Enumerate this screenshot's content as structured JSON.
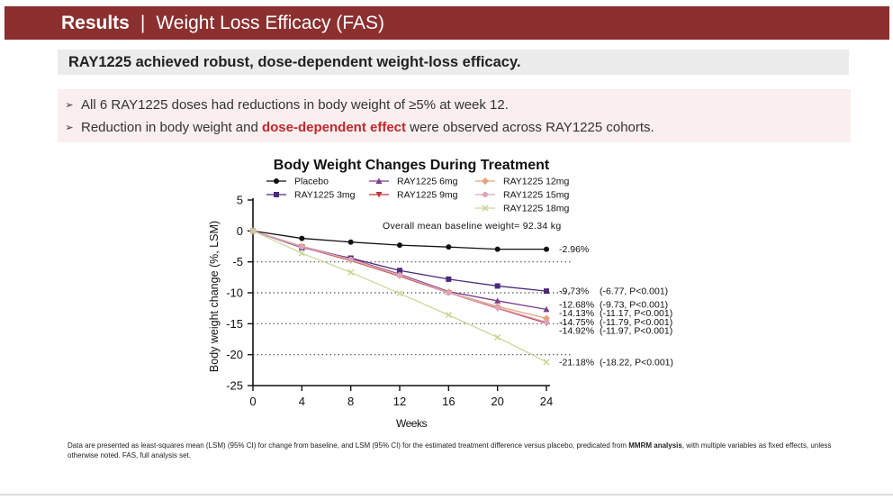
{
  "header": {
    "section": "Results",
    "separator": "|",
    "title": "Weight Loss Efficacy (FAS)"
  },
  "subtitle": "RAY1225 achieved robust, dose-dependent weight-loss efficacy.",
  "bullets": [
    {
      "text_before": "All 6 RAY1225 doses had reductions in body weight of ≥5% at week 12.",
      "highlight": "",
      "text_after": ""
    },
    {
      "text_before": "Reduction in body weight and ",
      "highlight": "dose-dependent effect",
      "text_after": " were observed across RAY1225 cohorts."
    }
  ],
  "chart_data": {
    "type": "line",
    "title": "Body Weight Changes During Treatment",
    "xlabel": "Weeks",
    "ylabel": "Body weight change (%, LSM)",
    "x": [
      0,
      4,
      8,
      12,
      16,
      20,
      24
    ],
    "xlim": [
      0,
      24
    ],
    "ylim": [
      -25,
      5
    ],
    "xticks": [
      "0",
      "4",
      "8",
      "12",
      "16",
      "20",
      "24"
    ],
    "yticks": [
      "5",
      "0",
      "-5",
      "-10",
      "-15",
      "-20",
      "-25"
    ],
    "ytick_values": [
      5,
      0,
      -5,
      -10,
      -15,
      -20,
      -25
    ],
    "reference_lines": [
      -5,
      -10,
      -15,
      -20
    ],
    "annotation": "Overall mean baseline weight= 92.34 kg",
    "legend_placement": "top",
    "series": [
      {
        "name": "Placebo",
        "color": "#111111",
        "marker": "circle",
        "values": [
          0,
          -1.2,
          -1.8,
          -2.3,
          -2.6,
          -2.95,
          -2.96
        ]
      },
      {
        "name": "RAY1225 3mg",
        "color": "#4a2a7a",
        "marker": "square",
        "values": [
          0,
          -2.7,
          -4.4,
          -6.4,
          -7.8,
          -8.9,
          -9.73
        ]
      },
      {
        "name": "RAY1225 6mg",
        "color": "#7b3f8c",
        "marker": "triangle-up",
        "values": [
          0,
          -2.5,
          -4.5,
          -7.0,
          -9.8,
          -11.3,
          -12.68
        ]
      },
      {
        "name": "RAY1225 9mg",
        "color": "#c0363f",
        "marker": "triangle-down",
        "values": [
          0,
          -2.6,
          -4.8,
          -7.3,
          -10.0,
          -12.5,
          -14.92
        ]
      },
      {
        "name": "RAY1225 12mg",
        "color": "#e8a17a",
        "marker": "diamond",
        "values": [
          0,
          -2.5,
          -4.7,
          -7.2,
          -9.9,
          -12.2,
          -14.13
        ]
      },
      {
        "name": "RAY1225 15mg",
        "color": "#d9a5b8",
        "marker": "circle",
        "values": [
          0,
          -2.6,
          -4.6,
          -7.1,
          -10.0,
          -12.4,
          -14.75
        ]
      },
      {
        "name": "RAY1225 18mg",
        "color": "#c8d89a",
        "marker": "x",
        "values": [
          0,
          -3.6,
          -6.7,
          -10.1,
          -13.6,
          -17.2,
          -21.18
        ]
      }
    ],
    "end_labels": [
      {
        "pct": "-2.96%",
        "detail": "",
        "y": -2.96
      },
      {
        "pct": "-9,73%",
        "detail": "(-6.77, P<0.001)",
        "y": -9.73
      },
      {
        "pct": "-12.68%",
        "detail": "(-9.73, P<0.001)",
        "y": -11.9
      },
      {
        "pct": "-14.13%",
        "detail": "(-11.17, P<0.001)",
        "y": -13.3
      },
      {
        "pct": "-14.75%",
        "detail": "(-11.79, P<0.001)",
        "y": -14.7
      },
      {
        "pct": "-14.92%",
        "detail": "(-11.97, P<0.001)",
        "y": -16.1
      },
      {
        "pct": "-21.18%",
        "detail": "(-18.22, P<0.001)",
        "y": -21.18
      }
    ]
  },
  "footnote": {
    "part1": "Data are presented as least-squares mean (LSM) (95% CI) for change from baseline, and LSM (95% CI) for the estimated treatment difference versus placebo, predicated from ",
    "bold": "MMRM analysis",
    "part2": ", with multiple variables as fixed effects, unless otherwise noted. FAS, full analysis set."
  }
}
